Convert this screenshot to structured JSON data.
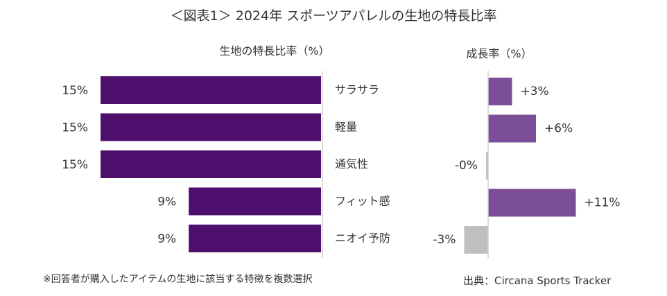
{
  "title": "＜図表1＞ 2024年 スポーツアパレルの生地の特長比率",
  "chart_data": [
    {
      "type": "bar",
      "orientation": "horizontal",
      "title": "生地の特長比率（%）",
      "categories": [
        "サラサラ",
        "軽量",
        "通気性",
        "フィット感",
        "ニオイ予防"
      ],
      "values": [
        15,
        15,
        15,
        9,
        9
      ],
      "data_labels": [
        "15%",
        "15%",
        "15%",
        "9%",
        "9%"
      ],
      "bar_direction": "right-to-left",
      "color": "#4e0e6b"
    },
    {
      "type": "bar",
      "orientation": "horizontal",
      "title": "成長率（%）",
      "categories": [
        "サラサラ",
        "軽量",
        "通気性",
        "フィット感",
        "ニオイ予防"
      ],
      "values": [
        3,
        6,
        -0.2,
        11,
        -3
      ],
      "data_labels": [
        "+3%",
        "+6%",
        "-0%",
        "+11%",
        "-3%"
      ],
      "positive_color": "#7d4e98",
      "negative_color": "#bfbfbf"
    }
  ],
  "footnote": "※回答者が購入したアイテムの生地に該当する特徴を複数選択",
  "source": "出典：Circana Sports Tracker"
}
